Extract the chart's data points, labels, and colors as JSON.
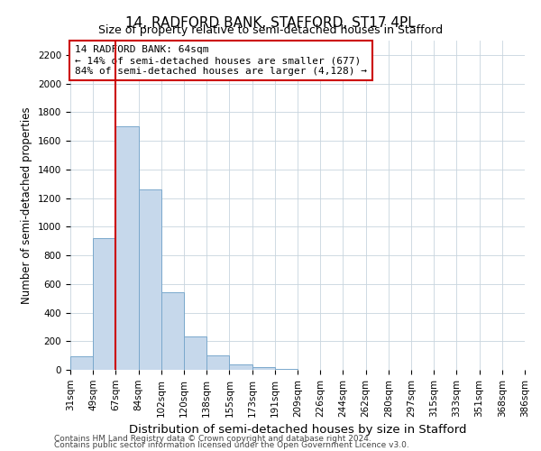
{
  "title": "14, RADFORD BANK, STAFFORD, ST17 4PL",
  "subtitle": "Size of property relative to semi-detached houses in Stafford",
  "xlabel": "Distribution of semi-detached houses by size in Stafford",
  "ylabel": "Number of semi-detached properties",
  "bin_edges": [
    "31sqm",
    "49sqm",
    "67sqm",
    "84sqm",
    "102sqm",
    "120sqm",
    "138sqm",
    "155sqm",
    "173sqm",
    "191sqm",
    "209sqm",
    "226sqm",
    "244sqm",
    "262sqm",
    "280sqm",
    "297sqm",
    "315sqm",
    "333sqm",
    "351sqm",
    "368sqm",
    "386sqm"
  ],
  "values": [
    95,
    920,
    1700,
    1260,
    540,
    235,
    100,
    40,
    20,
    5,
    2,
    0,
    0,
    0,
    0,
    0,
    0,
    0,
    0,
    0
  ],
  "bar_color": "#c6d8eb",
  "bar_edge_color": "#7aa8cc",
  "annotation_text": "14 RADFORD BANK: 64sqm\n← 14% of semi-detached houses are smaller (677)\n84% of semi-detached houses are larger (4,128) →",
  "annotation_box_facecolor": "#ffffff",
  "annotation_box_edgecolor": "#cc0000",
  "vline_color": "#cc0000",
  "vline_x_index": 2,
  "ylim": [
    0,
    2300
  ],
  "yticks": [
    0,
    200,
    400,
    600,
    800,
    1000,
    1200,
    1400,
    1600,
    1800,
    2000,
    2200
  ],
  "footnote1": "Contains HM Land Registry data © Crown copyright and database right 2024.",
  "footnote2": "Contains public sector information licensed under the Open Government Licence v3.0.",
  "bg_color": "#ffffff",
  "grid_color": "#c8d4de",
  "title_fontsize": 11,
  "subtitle_fontsize": 9,
  "xlabel_fontsize": 9.5,
  "ylabel_fontsize": 8.5,
  "tick_fontsize": 7.5,
  "annot_fontsize": 8,
  "footnote_fontsize": 6.5
}
